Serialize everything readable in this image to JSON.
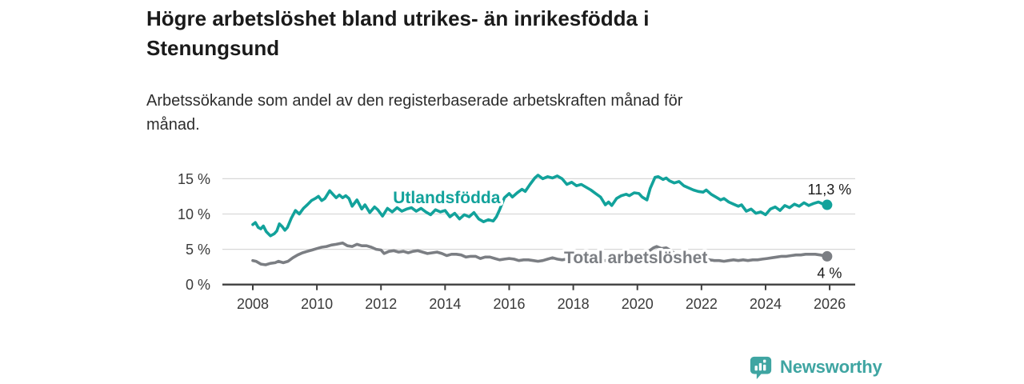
{
  "header": {
    "title_line1": "Högre arbetslöshet bland utrikes- än inrikesfödda i",
    "title_line2": "Stenungsund",
    "subtitle_line1": "Arbetssökande som andel av den registerbaserade arbetskraften månad för",
    "subtitle_line2": "månad."
  },
  "footer": {
    "brand": "Newsworthy",
    "brand_color": "#3fa5a2"
  },
  "chart_data": {
    "type": "line",
    "title": "Högre arbetslöshet bland utrikes- än inrikesfödda i Stenungsund",
    "subtitle": "Arbetssökande som andel av den registerbaserade arbetskraften månad för månad.",
    "x_axis": {
      "ticks": [
        2008,
        2010,
        2012,
        2014,
        2016,
        2018,
        2020,
        2022,
        2024,
        2026
      ],
      "min": 2007.05,
      "max": 2026.8
    },
    "y_axis": {
      "ticks": [
        0,
        5,
        10,
        15
      ],
      "suffix": " %",
      "min": 0,
      "max": 16.8,
      "grid": true
    },
    "colors": {
      "grid": "#d8d8d8",
      "axis": "#3f3f3f",
      "tick_text": "#3a3a3a",
      "value_label": "#1a1a1a"
    },
    "series": [
      {
        "name": "Utlandsfödda",
        "color": "#12a29b",
        "end_label": "11,3 %",
        "end_label_position": "above",
        "label_pos": [
          2014.05,
          12.35
        ],
        "points": [
          [
            2008.0,
            8.5
          ],
          [
            2008.08,
            8.8
          ],
          [
            2008.17,
            8.1
          ],
          [
            2008.25,
            7.9
          ],
          [
            2008.33,
            8.3
          ],
          [
            2008.42,
            7.5
          ],
          [
            2008.55,
            6.9
          ],
          [
            2008.67,
            7.2
          ],
          [
            2008.75,
            7.6
          ],
          [
            2008.83,
            8.6
          ],
          [
            2008.92,
            8.2
          ],
          [
            2009.0,
            7.7
          ],
          [
            2009.08,
            8.1
          ],
          [
            2009.2,
            9.4
          ],
          [
            2009.33,
            10.5
          ],
          [
            2009.45,
            10.0
          ],
          [
            2009.58,
            10.8
          ],
          [
            2009.7,
            11.3
          ],
          [
            2009.83,
            11.9
          ],
          [
            2009.95,
            12.2
          ],
          [
            2010.05,
            12.5
          ],
          [
            2010.15,
            11.9
          ],
          [
            2010.25,
            12.2
          ],
          [
            2010.4,
            13.3
          ],
          [
            2010.5,
            12.8
          ],
          [
            2010.6,
            12.3
          ],
          [
            2010.7,
            12.7
          ],
          [
            2010.8,
            12.3
          ],
          [
            2010.9,
            12.6
          ],
          [
            2011.0,
            12.2
          ],
          [
            2011.1,
            11.1
          ],
          [
            2011.25,
            12.0
          ],
          [
            2011.4,
            10.7
          ],
          [
            2011.5,
            11.3
          ],
          [
            2011.65,
            10.2
          ],
          [
            2011.8,
            11.0
          ],
          [
            2011.9,
            10.6
          ],
          [
            2012.05,
            9.7
          ],
          [
            2012.2,
            10.8
          ],
          [
            2012.35,
            10.3
          ],
          [
            2012.5,
            10.9
          ],
          [
            2012.65,
            10.4
          ],
          [
            2012.8,
            10.7
          ],
          [
            2012.95,
            10.9
          ],
          [
            2013.1,
            10.4
          ],
          [
            2013.25,
            10.8
          ],
          [
            2013.4,
            10.3
          ],
          [
            2013.55,
            9.9
          ],
          [
            2013.7,
            10.6
          ],
          [
            2013.85,
            10.3
          ],
          [
            2014.0,
            10.5
          ],
          [
            2014.15,
            9.6
          ],
          [
            2014.3,
            10.1
          ],
          [
            2014.45,
            9.3
          ],
          [
            2014.6,
            9.9
          ],
          [
            2014.75,
            9.6
          ],
          [
            2014.9,
            10.2
          ],
          [
            2015.05,
            9.3
          ],
          [
            2015.2,
            8.9
          ],
          [
            2015.35,
            9.2
          ],
          [
            2015.5,
            9.0
          ],
          [
            2015.6,
            9.6
          ],
          [
            2015.7,
            10.6
          ],
          [
            2015.85,
            12.3
          ],
          [
            2016.0,
            12.9
          ],
          [
            2016.1,
            12.4
          ],
          [
            2016.25,
            13.0
          ],
          [
            2016.4,
            13.5
          ],
          [
            2016.5,
            13.2
          ],
          [
            2016.65,
            14.2
          ],
          [
            2016.8,
            15.1
          ],
          [
            2016.9,
            15.5
          ],
          [
            2017.05,
            15.0
          ],
          [
            2017.2,
            15.3
          ],
          [
            2017.35,
            15.1
          ],
          [
            2017.5,
            15.4
          ],
          [
            2017.65,
            15.0
          ],
          [
            2017.8,
            14.2
          ],
          [
            2017.95,
            14.5
          ],
          [
            2018.1,
            14.0
          ],
          [
            2018.25,
            14.2
          ],
          [
            2018.4,
            13.8
          ],
          [
            2018.55,
            13.4
          ],
          [
            2018.7,
            12.9
          ],
          [
            2018.85,
            12.4
          ],
          [
            2019.0,
            11.3
          ],
          [
            2019.1,
            11.7
          ],
          [
            2019.2,
            11.2
          ],
          [
            2019.35,
            12.2
          ],
          [
            2019.5,
            12.6
          ],
          [
            2019.65,
            12.8
          ],
          [
            2019.75,
            12.6
          ],
          [
            2019.9,
            13.0
          ],
          [
            2020.05,
            12.9
          ],
          [
            2020.15,
            12.4
          ],
          [
            2020.3,
            12.0
          ],
          [
            2020.4,
            13.6
          ],
          [
            2020.55,
            15.2
          ],
          [
            2020.65,
            15.3
          ],
          [
            2020.8,
            14.9
          ],
          [
            2020.9,
            15.1
          ],
          [
            2021.0,
            14.7
          ],
          [
            2021.15,
            14.4
          ],
          [
            2021.3,
            14.6
          ],
          [
            2021.45,
            14.0
          ],
          [
            2021.6,
            13.7
          ],
          [
            2021.75,
            13.4
          ],
          [
            2021.9,
            13.2
          ],
          [
            2022.05,
            13.1
          ],
          [
            2022.15,
            13.4
          ],
          [
            2022.3,
            12.8
          ],
          [
            2022.45,
            12.4
          ],
          [
            2022.6,
            12.0
          ],
          [
            2022.7,
            12.2
          ],
          [
            2022.85,
            11.7
          ],
          [
            2023.0,
            11.4
          ],
          [
            2023.15,
            11.1
          ],
          [
            2023.25,
            11.3
          ],
          [
            2023.4,
            10.4
          ],
          [
            2023.55,
            10.7
          ],
          [
            2023.7,
            10.1
          ],
          [
            2023.85,
            10.3
          ],
          [
            2024.0,
            9.9
          ],
          [
            2024.15,
            10.7
          ],
          [
            2024.3,
            11.0
          ],
          [
            2024.45,
            10.5
          ],
          [
            2024.6,
            11.2
          ],
          [
            2024.75,
            10.9
          ],
          [
            2024.9,
            11.4
          ],
          [
            2025.05,
            11.1
          ],
          [
            2025.2,
            11.6
          ],
          [
            2025.35,
            11.2
          ],
          [
            2025.5,
            11.5
          ],
          [
            2025.65,
            11.7
          ],
          [
            2025.8,
            11.4
          ],
          [
            2025.92,
            11.3
          ]
        ]
      },
      {
        "name": "Total arbetslöshet",
        "color": "#7b7e83",
        "end_label": "4 %",
        "end_label_position": "below",
        "label_pos": [
          2019.95,
          3.8
        ],
        "points": [
          [
            2008.0,
            3.4
          ],
          [
            2008.1,
            3.3
          ],
          [
            2008.25,
            2.9
          ],
          [
            2008.4,
            2.8
          ],
          [
            2008.55,
            3.0
          ],
          [
            2008.7,
            3.1
          ],
          [
            2008.8,
            3.3
          ],
          [
            2008.95,
            3.1
          ],
          [
            2009.1,
            3.3
          ],
          [
            2009.25,
            3.8
          ],
          [
            2009.4,
            4.2
          ],
          [
            2009.55,
            4.5
          ],
          [
            2009.7,
            4.7
          ],
          [
            2009.85,
            4.9
          ],
          [
            2010.0,
            5.1
          ],
          [
            2010.15,
            5.3
          ],
          [
            2010.3,
            5.4
          ],
          [
            2010.45,
            5.6
          ],
          [
            2010.6,
            5.7
          ],
          [
            2010.8,
            5.9
          ],
          [
            2010.95,
            5.5
          ],
          [
            2011.1,
            5.4
          ],
          [
            2011.25,
            5.7
          ],
          [
            2011.4,
            5.5
          ],
          [
            2011.55,
            5.5
          ],
          [
            2011.7,
            5.3
          ],
          [
            2011.85,
            5.0
          ],
          [
            2012.0,
            4.9
          ],
          [
            2012.1,
            4.4
          ],
          [
            2012.25,
            4.7
          ],
          [
            2012.4,
            4.8
          ],
          [
            2012.55,
            4.6
          ],
          [
            2012.7,
            4.7
          ],
          [
            2012.85,
            4.5
          ],
          [
            2013.0,
            4.7
          ],
          [
            2013.15,
            4.8
          ],
          [
            2013.3,
            4.6
          ],
          [
            2013.45,
            4.4
          ],
          [
            2013.6,
            4.5
          ],
          [
            2013.75,
            4.6
          ],
          [
            2013.9,
            4.4
          ],
          [
            2014.05,
            4.1
          ],
          [
            2014.2,
            4.3
          ],
          [
            2014.35,
            4.3
          ],
          [
            2014.5,
            4.2
          ],
          [
            2014.65,
            3.9
          ],
          [
            2014.8,
            4.0
          ],
          [
            2014.95,
            4.0
          ],
          [
            2015.1,
            3.7
          ],
          [
            2015.25,
            3.9
          ],
          [
            2015.4,
            3.9
          ],
          [
            2015.55,
            3.7
          ],
          [
            2015.7,
            3.5
          ],
          [
            2015.85,
            3.6
          ],
          [
            2016.0,
            3.7
          ],
          [
            2016.15,
            3.6
          ],
          [
            2016.3,
            3.4
          ],
          [
            2016.45,
            3.5
          ],
          [
            2016.6,
            3.5
          ],
          [
            2016.75,
            3.4
          ],
          [
            2016.9,
            3.3
          ],
          [
            2017.05,
            3.4
          ],
          [
            2017.2,
            3.6
          ],
          [
            2017.35,
            3.8
          ],
          [
            2017.5,
            3.6
          ],
          [
            2017.65,
            3.5
          ],
          [
            2017.8,
            3.6
          ],
          [
            2017.95,
            3.7
          ],
          [
            2018.1,
            3.5
          ],
          [
            2018.25,
            3.6
          ],
          [
            2018.4,
            3.5
          ],
          [
            2018.55,
            3.4
          ],
          [
            2018.7,
            3.5
          ],
          [
            2018.85,
            3.4
          ],
          [
            2019.0,
            3.4
          ],
          [
            2019.15,
            3.6
          ],
          [
            2019.3,
            3.7
          ],
          [
            2019.45,
            3.6
          ],
          [
            2019.6,
            3.6
          ],
          [
            2019.75,
            3.7
          ],
          [
            2019.9,
            3.8
          ],
          [
            2020.05,
            3.9
          ],
          [
            2020.2,
            4.1
          ],
          [
            2020.35,
            4.7
          ],
          [
            2020.5,
            5.2
          ],
          [
            2020.6,
            5.4
          ],
          [
            2020.75,
            5.1
          ],
          [
            2020.9,
            5.2
          ],
          [
            2021.05,
            4.8
          ],
          [
            2021.2,
            4.3
          ],
          [
            2021.35,
            3.9
          ],
          [
            2021.5,
            3.7
          ],
          [
            2021.65,
            3.6
          ],
          [
            2021.8,
            3.7
          ],
          [
            2021.95,
            3.6
          ],
          [
            2022.1,
            3.6
          ],
          [
            2022.25,
            3.5
          ],
          [
            2022.4,
            3.4
          ],
          [
            2022.55,
            3.4
          ],
          [
            2022.7,
            3.3
          ],
          [
            2022.85,
            3.4
          ],
          [
            2023.0,
            3.5
          ],
          [
            2023.15,
            3.4
          ],
          [
            2023.3,
            3.5
          ],
          [
            2023.45,
            3.4
          ],
          [
            2023.6,
            3.5
          ],
          [
            2023.75,
            3.5
          ],
          [
            2023.9,
            3.6
          ],
          [
            2024.05,
            3.7
          ],
          [
            2024.2,
            3.8
          ],
          [
            2024.35,
            3.9
          ],
          [
            2024.5,
            4.0
          ],
          [
            2024.65,
            4.0
          ],
          [
            2024.8,
            4.1
          ],
          [
            2024.95,
            4.2
          ],
          [
            2025.1,
            4.2
          ],
          [
            2025.25,
            4.3
          ],
          [
            2025.4,
            4.3
          ],
          [
            2025.55,
            4.3
          ],
          [
            2025.7,
            4.2
          ],
          [
            2025.92,
            4.0
          ]
        ]
      }
    ],
    "legend_position": "inline-labels"
  }
}
